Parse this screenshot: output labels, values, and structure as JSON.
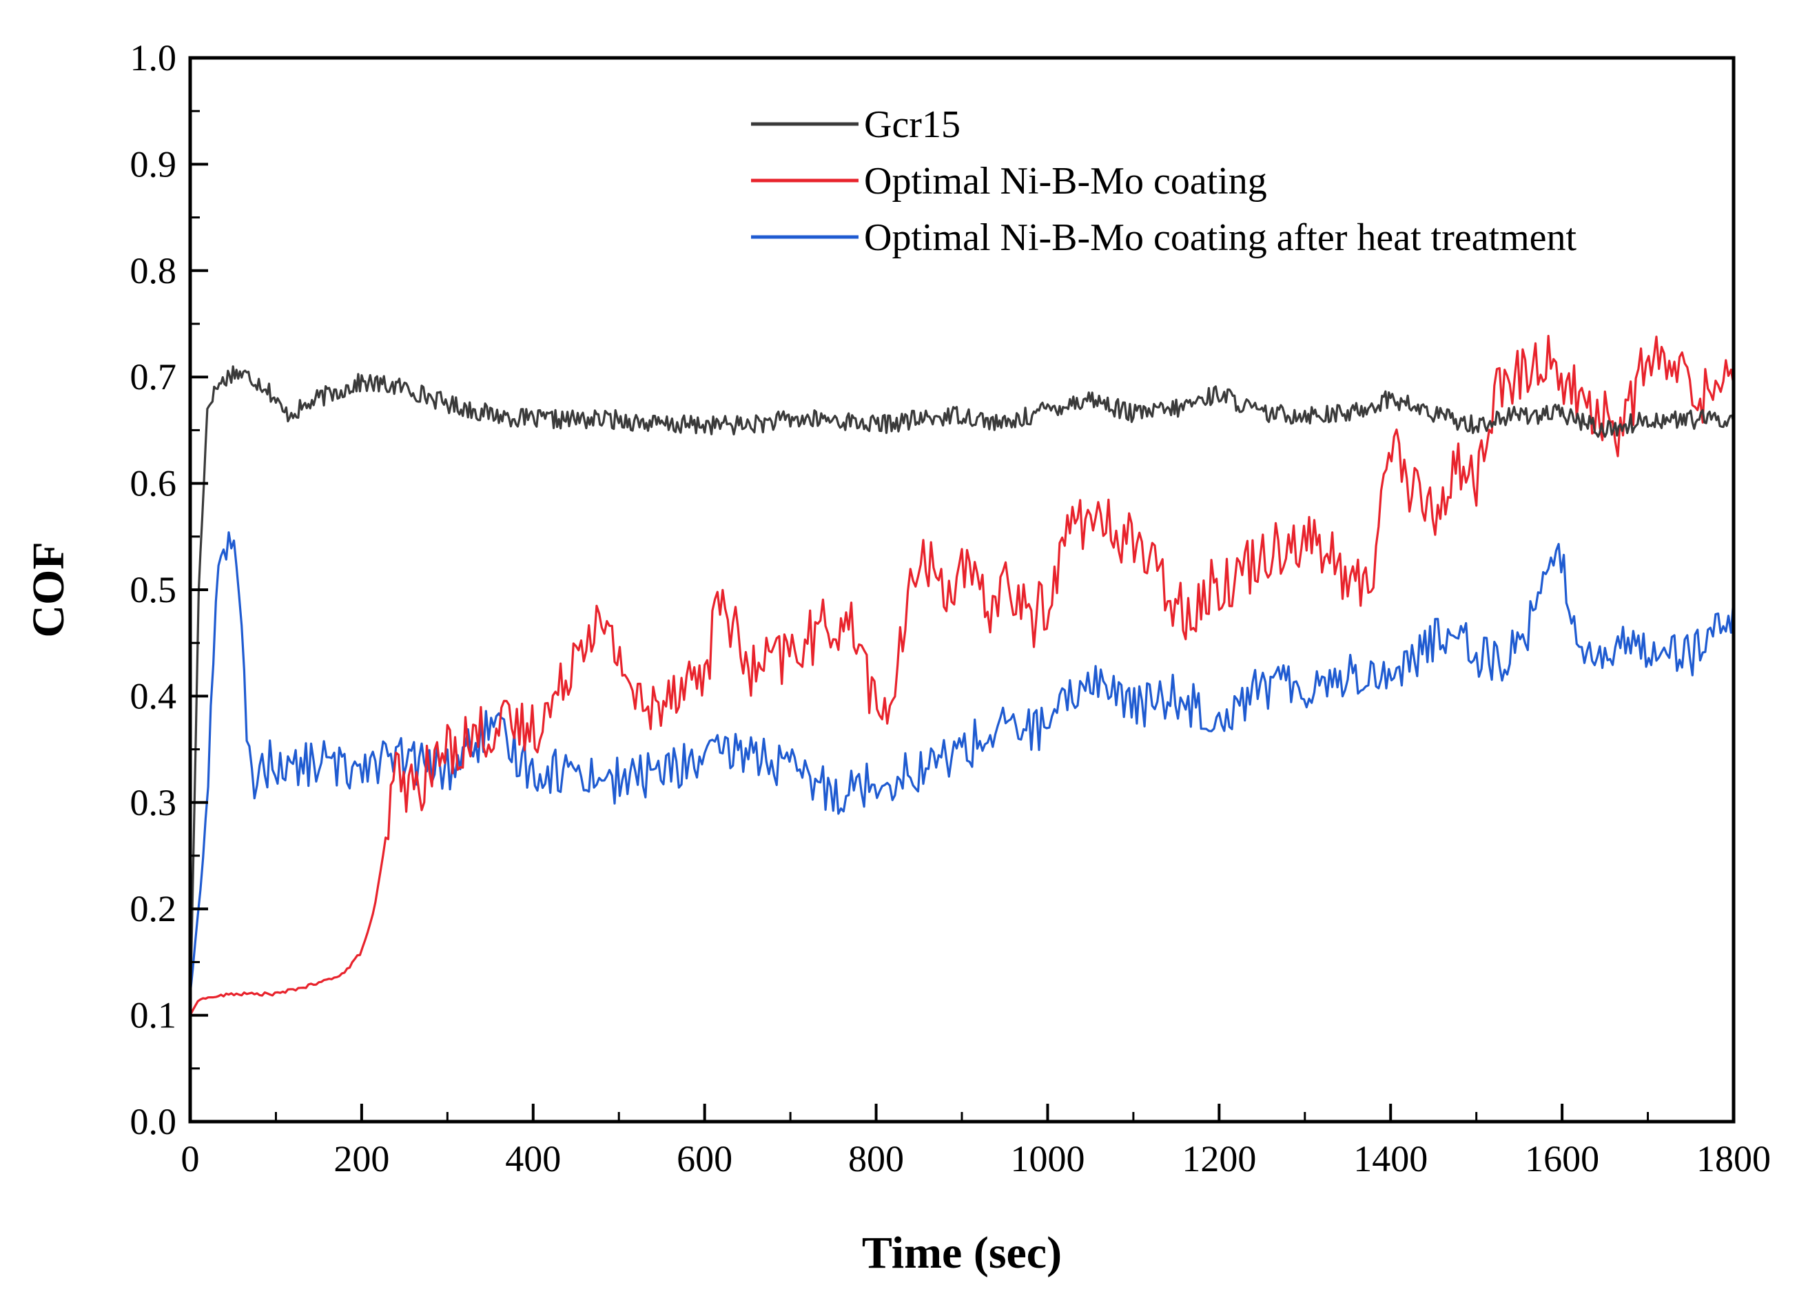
{
  "chart_data": {
    "type": "line",
    "title": "",
    "xlabel": "Time (sec)",
    "ylabel": "COF",
    "xlim": [
      0,
      1800
    ],
    "ylim": [
      0.0,
      1.0
    ],
    "x_ticks": [
      0,
      200,
      400,
      600,
      800,
      1000,
      1200,
      1400,
      1600,
      1800
    ],
    "x_tick_labels": [
      "0",
      "200",
      "400",
      "600",
      "800",
      "1000",
      "1200",
      "1400",
      "1600",
      "1800"
    ],
    "y_ticks": [
      0.0,
      0.1,
      0.2,
      0.3,
      0.4,
      0.5,
      0.6,
      0.7,
      0.8,
      0.9,
      1.0
    ],
    "y_tick_labels": [
      "0.0",
      "0.1",
      "0.2",
      "0.3",
      "0.4",
      "0.5",
      "0.6",
      "0.7",
      "0.8",
      "0.9",
      "1.0"
    ],
    "grid": false,
    "legend_position": "top-center",
    "series": [
      {
        "name": "Gcr15",
        "color": "#3a3a3a",
        "x": [
          0,
          10,
          20,
          30,
          50,
          70,
          90,
          110,
          130,
          150,
          200,
          250,
          300,
          350,
          400,
          450,
          500,
          550,
          600,
          650,
          700,
          750,
          800,
          850,
          900,
          950,
          1000,
          1050,
          1100,
          1150,
          1200,
          1250,
          1300,
          1350,
          1400,
          1450,
          1500,
          1550,
          1600,
          1650,
          1700,
          1750,
          1800
        ],
        "y": [
          0.1,
          0.5,
          0.67,
          0.69,
          0.705,
          0.7,
          0.69,
          0.665,
          0.67,
          0.68,
          0.695,
          0.69,
          0.675,
          0.665,
          0.66,
          0.66,
          0.66,
          0.655,
          0.655,
          0.655,
          0.66,
          0.66,
          0.655,
          0.66,
          0.665,
          0.655,
          0.67,
          0.68,
          0.665,
          0.67,
          0.685,
          0.665,
          0.665,
          0.665,
          0.68,
          0.665,
          0.655,
          0.665,
          0.665,
          0.65,
          0.66,
          0.66,
          0.66
        ]
      },
      {
        "name": "Optimal Ni-B-Mo coating",
        "color": "#e8232c",
        "x": [
          0,
          10,
          50,
          100,
          150,
          180,
          200,
          215,
          225,
          240,
          260,
          300,
          350,
          400,
          430,
          450,
          470,
          500,
          530,
          560,
          600,
          620,
          650,
          700,
          750,
          780,
          800,
          820,
          850,
          880,
          900,
          930,
          950,
          980,
          1000,
          1030,
          1060,
          1100,
          1130,
          1160,
          1190,
          1230,
          1260,
          1300,
          1330,
          1360,
          1380,
          1400,
          1420,
          1450,
          1480,
          1500,
          1520,
          1550,
          1580,
          1600,
          1620,
          1650,
          1670,
          1700,
          1740,
          1770,
          1800
        ],
        "y": [
          0.1,
          0.115,
          0.12,
          0.12,
          0.13,
          0.14,
          0.16,
          0.2,
          0.25,
          0.33,
          0.31,
          0.35,
          0.37,
          0.37,
          0.4,
          0.45,
          0.47,
          0.44,
          0.38,
          0.41,
          0.42,
          0.5,
          0.42,
          0.44,
          0.47,
          0.46,
          0.38,
          0.4,
          0.54,
          0.5,
          0.52,
          0.48,
          0.51,
          0.47,
          0.49,
          0.57,
          0.56,
          0.55,
          0.51,
          0.48,
          0.5,
          0.52,
          0.54,
          0.55,
          0.53,
          0.5,
          0.52,
          0.65,
          0.6,
          0.57,
          0.62,
          0.6,
          0.68,
          0.7,
          0.72,
          0.7,
          0.68,
          0.66,
          0.65,
          0.72,
          0.7,
          0.68,
          0.72
        ]
      },
      {
        "name": "Optimal Ni-B-Mo coating after heat treatment",
        "color": "#1f5bd1",
        "x": [
          0,
          10,
          20,
          30,
          40,
          50,
          60,
          70,
          80,
          100,
          120,
          150,
          180,
          200,
          250,
          300,
          350,
          400,
          450,
          500,
          550,
          600,
          650,
          700,
          750,
          800,
          850,
          900,
          950,
          1000,
          1050,
          1100,
          1150,
          1200,
          1250,
          1300,
          1350,
          1400,
          1450,
          1480,
          1500,
          1530,
          1560,
          1580,
          1600,
          1620,
          1650,
          1700,
          1750,
          1800
        ],
        "y": [
          0.12,
          0.2,
          0.3,
          0.5,
          0.55,
          0.55,
          0.45,
          0.32,
          0.33,
          0.34,
          0.33,
          0.34,
          0.33,
          0.34,
          0.34,
          0.33,
          0.37,
          0.33,
          0.33,
          0.32,
          0.33,
          0.34,
          0.35,
          0.33,
          0.31,
          0.32,
          0.33,
          0.35,
          0.37,
          0.37,
          0.42,
          0.39,
          0.4,
          0.38,
          0.41,
          0.41,
          0.42,
          0.42,
          0.45,
          0.47,
          0.44,
          0.43,
          0.46,
          0.53,
          0.52,
          0.45,
          0.44,
          0.45,
          0.44,
          0.47
        ]
      }
    ]
  }
}
